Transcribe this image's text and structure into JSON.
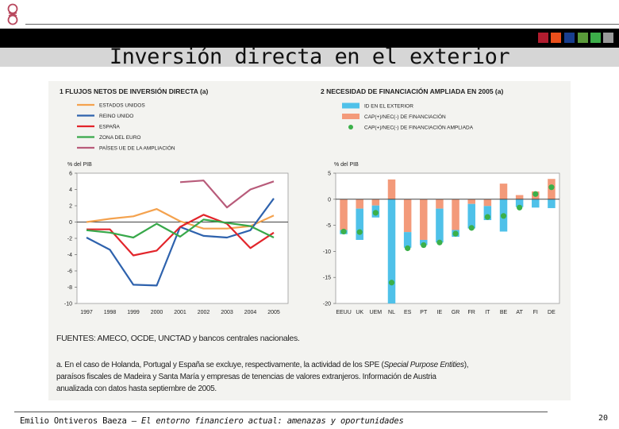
{
  "header": {
    "title": "Inversión directa en el exterior",
    "colors": [
      "#b01c2e",
      "#ea4f1b",
      "#183e8f",
      "#5a9a3a",
      "#3cae49",
      "#9a9a9a"
    ]
  },
  "chart_data": [
    {
      "type": "line",
      "title": "1  FLUJOS NETOS DE INVERSIÓN DIRECTA (a)",
      "ylabel": "% del PIB",
      "ylim": [
        -10,
        6
      ],
      "yticks": [
        6,
        4,
        2,
        0,
        -2,
        -4,
        -6,
        -8,
        -10
      ],
      "x": [
        "1997",
        "1998",
        "1999",
        "2000",
        "2001",
        "2002",
        "2003",
        "2004",
        "2005"
      ],
      "series": [
        {
          "name": "ESTADOS UNIDOS",
          "color": "#f4a24e",
          "values": [
            0.0,
            0.4,
            0.7,
            1.6,
            0.1,
            -0.8,
            -0.8,
            -0.5,
            0.8
          ]
        },
        {
          "name": "REINO UNIDO",
          "color": "#2e62ad",
          "values": [
            -1.9,
            -3.4,
            -7.7,
            -7.8,
            -0.6,
            -1.7,
            -1.9,
            -1.0,
            2.9
          ]
        },
        {
          "name": "ESPAÑA",
          "color": "#e2252b",
          "values": [
            -0.9,
            -0.9,
            -4.1,
            -3.5,
            -0.6,
            0.9,
            -0.2,
            -3.2,
            -1.3
          ]
        },
        {
          "name": "ZONA DEL EURO",
          "color": "#38a84a",
          "values": [
            -1.0,
            -1.3,
            -1.9,
            -0.2,
            -1.8,
            0.3,
            -0.1,
            -0.5,
            -1.9
          ]
        },
        {
          "name": "PAÍSES UE DE LA AMPLIACIÓN",
          "color": "#b85b7a",
          "values": [
            null,
            null,
            null,
            null,
            4.9,
            5.1,
            1.8,
            4.0,
            5.0
          ]
        }
      ]
    },
    {
      "type": "bar",
      "title": "2  NECESIDAD DE FINANCIACIÓN AMPLIADA EN 2005 (a)",
      "ylabel": "% del PIB",
      "ylim": [
        -20,
        5
      ],
      "yticks": [
        5,
        0,
        -5,
        -10,
        -15,
        -20
      ],
      "categories": [
        "EEUU",
        "UK",
        "UEM",
        "NL",
        "ES",
        "PT",
        "IE",
        "GR",
        "FR",
        "IT",
        "BE",
        "AT",
        "FI",
        "DE"
      ],
      "series": [
        {
          "name": "ID EN EL EXTERIOR",
          "color": "#4fc1e9",
          "values": [
            -0.8,
            -6.0,
            -2.3,
            -20.0,
            -3.0,
            -1.0,
            -6.5,
            -1.3,
            -4.7,
            -2.7,
            -6.2,
            -1.5,
            -1.6,
            -1.7
          ]
        },
        {
          "name": "CAP(+)/NEC(-) DE FINANCIACIÓN",
          "color": "#f39a7a",
          "values": [
            -5.9,
            -1.8,
            -1.2,
            3.8,
            -6.3,
            -7.8,
            -1.8,
            -5.9,
            -0.9,
            -1.3,
            3.0,
            0.8,
            1.5,
            3.9
          ]
        },
        {
          "name": "CAP(+)/NEC(-) DE FINANCIACIÓN AMPLIADA",
          "color": "#3bb04a",
          "values": [
            -6.2,
            -6.3,
            -2.6,
            -16.0,
            -9.4,
            -8.8,
            -8.3,
            -6.6,
            -5.5,
            -3.4,
            -3.2,
            -1.6,
            1.0,
            2.3
          ]
        }
      ]
    }
  ],
  "sources": "FUENTES: AMECO, OCDE, UNCTAD y bancos centrales nacionales.",
  "note": {
    "part1": "a. En el caso de Holanda, Portugal y España se excluye, respectivamente, la actividad de los SPE (",
    "italic": "Special Purpose Entities",
    "part2": "), paraísos fiscales de Madeira y Santa María y empresas de tenencias de valores extranjeros. Información de Austria anualizada con datos hasta septiembre de 2005."
  },
  "footer": {
    "author": "Emilio Ontiveros Baeza – ",
    "work": "El entorno financiero actual: amenazas y oportunidades",
    "page": "20"
  }
}
